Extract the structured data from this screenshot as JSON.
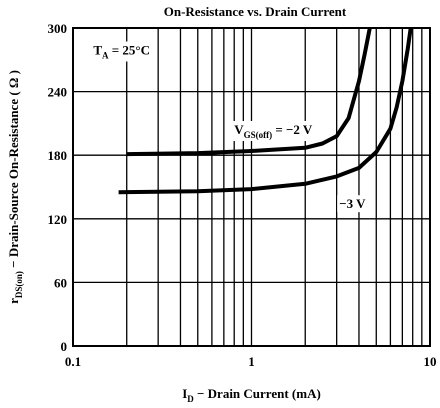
{
  "chart_data": {
    "type": "line",
    "title": "On-Resistance vs. Drain Current",
    "x_label": [
      "I",
      "D",
      " − Drain Current (mA)"
    ],
    "y_label": [
      "r",
      "DS(on)",
      " − Drain-Source On-Resistance ( Ω )"
    ],
    "xlog": true,
    "xlim": [
      0.1,
      10
    ],
    "ylim": [
      0,
      300
    ],
    "xticks": [
      0.1,
      1,
      10
    ],
    "xminor": [
      0.2,
      0.3,
      0.4,
      0.5,
      0.6,
      0.7,
      0.8,
      0.9,
      2,
      3,
      4,
      5,
      6,
      7,
      8,
      9
    ],
    "yticks": [
      0,
      60,
      120,
      180,
      240,
      300
    ],
    "grid": true,
    "annotations": [
      {
        "parts": [
          "T",
          "A",
          " = 25°C"
        ],
        "at": [
          0.13,
          275
        ]
      },
      {
        "parts": [
          "V",
          "GS(off)",
          " = −2 V"
        ],
        "at": [
          0.8,
          200
        ]
      },
      {
        "parts": [
          "−3 V"
        ],
        "at": [
          3.1,
          130
        ]
      }
    ],
    "series": [
      {
        "color": "#000000",
        "x": [
          0.2,
          0.5,
          1,
          2,
          2.5,
          3,
          3.5,
          4,
          4.3,
          4.6
        ],
        "values": [
          181,
          182,
          184,
          187,
          191,
          198,
          215,
          250,
          275,
          300
        ]
      },
      {
        "color": "#000000",
        "x": [
          0.18,
          0.5,
          1,
          2,
          3,
          4,
          5,
          6,
          6.5,
          7,
          7.5,
          7.8
        ],
        "values": [
          145,
          146,
          148,
          153,
          160,
          168,
          183,
          205,
          225,
          250,
          280,
          300
        ]
      }
    ]
  }
}
